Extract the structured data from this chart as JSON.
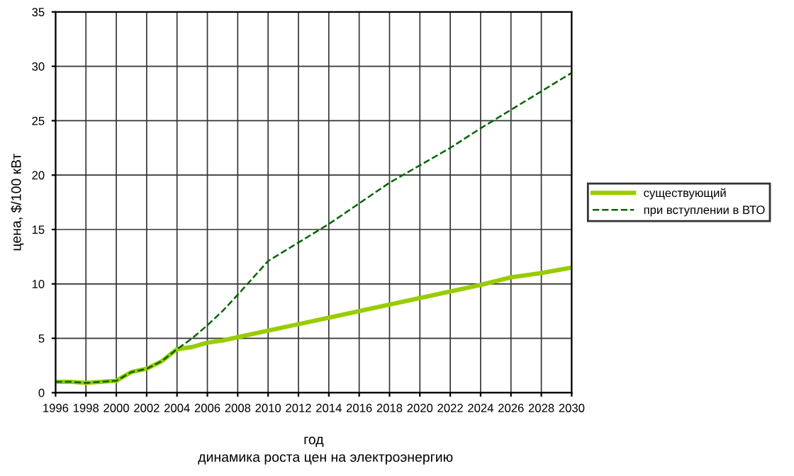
{
  "chart_data": {
    "type": "line",
    "xlabel": "год",
    "ylabel": "цена, $/100 кВт",
    "annotations": [
      "динамика роста цен на электроэнергию"
    ],
    "x": [
      1996,
      1997,
      1998,
      1999,
      2000,
      2001,
      2002,
      2003,
      2004,
      2005,
      2006,
      2007,
      2008,
      2010,
      2012,
      2014,
      2016,
      2018,
      2020,
      2022,
      2024,
      2026,
      2028,
      2030
    ],
    "series": [
      {
        "name": "существующий",
        "color": "#99cc00",
        "line_style": "solid",
        "values": [
          1.0,
          1.0,
          0.9,
          1.0,
          1.1,
          1.9,
          2.2,
          2.9,
          4.0,
          4.2,
          4.6,
          4.8,
          5.1,
          5.7,
          6.3,
          6.9,
          7.5,
          8.1,
          8.7,
          9.3,
          9.9,
          10.6,
          11.0,
          11.5
        ]
      },
      {
        "name": "при вступлении в ВТО",
        "color": "#006600",
        "line_style": "dashed",
        "values": [
          1.0,
          1.0,
          0.9,
          1.0,
          1.1,
          1.9,
          2.2,
          2.9,
          4.0,
          5.0,
          6.2,
          7.5,
          9.0,
          12.1,
          13.8,
          15.5,
          17.4,
          19.3,
          20.9,
          22.5,
          24.3,
          26.0,
          27.7,
          29.4
        ]
      }
    ],
    "xlim": [
      1996,
      2030
    ],
    "xticks": [
      1996,
      1998,
      2000,
      2002,
      2004,
      2006,
      2008,
      2010,
      2012,
      2014,
      2016,
      2018,
      2020,
      2022,
      2024,
      2026,
      2028,
      2030
    ],
    "ylim": [
      0,
      35
    ],
    "yticks": [
      0,
      5,
      10,
      15,
      20,
      25,
      30,
      35
    ],
    "grid": true,
    "legend": "right",
    "marker": "none"
  }
}
